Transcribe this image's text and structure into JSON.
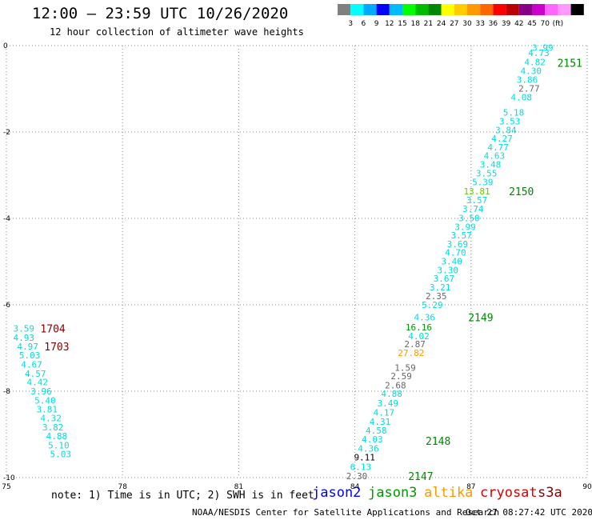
{
  "header": {
    "title": "12:00 – 23:59 UTC 10/26/2020",
    "subtitle": "12 hour collection of altimeter wave heights"
  },
  "legend_scale": {
    "colors": [
      "#808080",
      "#00ffff",
      "#00aaff",
      "#0000ff",
      "#00bbff",
      "#00ff00",
      "#00bb00",
      "#008800",
      "#ffff00",
      "#ffcc00",
      "#ff9900",
      "#ff6600",
      "#ff0000",
      "#bb0000",
      "#880088",
      "#cc00cc",
      "#ff66ff",
      "#ff99ff",
      "#000000"
    ],
    "labels": [
      "3",
      "6",
      "9",
      "12",
      "15",
      "18",
      "21",
      "24",
      "27",
      "30",
      "33",
      "36",
      "39",
      "42",
      "45",
      "70",
      "(ft)"
    ]
  },
  "footer": {
    "note": "note: 1) Time is in UTC; 2) SWH is in feet",
    "missions": [
      {
        "name": "jason2",
        "color": "#0000ff"
      },
      {
        "name": "jason3",
        "color": "#009900"
      },
      {
        "name": "altika",
        "color": "#ff9900"
      },
      {
        "name": "cryosat",
        "color": "#dd0000"
      },
      {
        "name": "s3a",
        "color": "#880000"
      }
    ],
    "credit": "NOAA/NESDIS Center for Satellite Applications and Research",
    "timestamp": "Oct 27 08:27:42 UTC 2020"
  },
  "chart_data": {
    "type": "scatter",
    "title": "12:00 – 23:59 UTC 10/26/2020",
    "xlim": [
      75,
      90
    ],
    "ylim": [
      -10,
      0
    ],
    "x_ticks": [
      "75",
      "78",
      "81",
      "84",
      "87",
      "90"
    ],
    "y_ticks": [
      "0",
      "-2",
      "-4",
      "-6",
      "-8",
      "-10"
    ],
    "grid": true,
    "colors": {
      "cyan": "#00dddd",
      "gray": "#666666",
      "black": "#000000",
      "lime": "#66cc00",
      "green": "#009900",
      "orange": "#ff9900",
      "track_green": "#008800",
      "track_red": "#880000"
    },
    "points": [
      {
        "x": 88.85,
        "y": -0.05,
        "v": "3.99",
        "c": "cyan"
      },
      {
        "x": 88.75,
        "y": -0.17,
        "v": "4.73",
        "c": "cyan"
      },
      {
        "x": 88.65,
        "y": -0.38,
        "v": "4.82",
        "c": "cyan"
      },
      {
        "x": 88.55,
        "y": -0.58,
        "v": "4.30",
        "c": "cyan"
      },
      {
        "x": 88.45,
        "y": -0.79,
        "v": "3.86",
        "c": "cyan"
      },
      {
        "x": 88.5,
        "y": -0.99,
        "v": "2.77",
        "c": "gray"
      },
      {
        "x": 88.3,
        "y": -1.19,
        "v": "4.08",
        "c": "cyan"
      },
      {
        "x": 88.1,
        "y": -1.55,
        "v": "5.18",
        "c": "cyan"
      },
      {
        "x": 88.0,
        "y": -1.75,
        "v": "3.53",
        "c": "cyan"
      },
      {
        "x": 87.9,
        "y": -1.95,
        "v": "3.84",
        "c": "cyan"
      },
      {
        "x": 87.8,
        "y": -2.15,
        "v": "4.27",
        "c": "cyan"
      },
      {
        "x": 87.7,
        "y": -2.35,
        "v": "4.77",
        "c": "cyan"
      },
      {
        "x": 87.6,
        "y": -2.55,
        "v": "4.63",
        "c": "cyan"
      },
      {
        "x": 87.5,
        "y": -2.75,
        "v": "3.48",
        "c": "cyan"
      },
      {
        "x": 87.4,
        "y": -2.95,
        "v": "3.55",
        "c": "cyan"
      },
      {
        "x": 87.3,
        "y": -3.16,
        "v": "5.39",
        "c": "cyan"
      },
      {
        "x": 87.15,
        "y": -3.37,
        "v": "13.81",
        "c": "lime"
      },
      {
        "x": 87.15,
        "y": -3.57,
        "v": "3.57",
        "c": "cyan"
      },
      {
        "x": 87.05,
        "y": -3.78,
        "v": "3.74",
        "c": "cyan"
      },
      {
        "x": 86.95,
        "y": -3.99,
        "v": "3.50",
        "c": "cyan"
      },
      {
        "x": 86.85,
        "y": -4.19,
        "v": "3.99",
        "c": "cyan"
      },
      {
        "x": 86.75,
        "y": -4.39,
        "v": "3.57",
        "c": "cyan"
      },
      {
        "x": 86.65,
        "y": -4.59,
        "v": "3.69",
        "c": "cyan"
      },
      {
        "x": 86.6,
        "y": -4.79,
        "v": "4.70",
        "c": "cyan"
      },
      {
        "x": 86.5,
        "y": -4.99,
        "v": "3.40",
        "c": "cyan"
      },
      {
        "x": 86.4,
        "y": -5.19,
        "v": "3.30",
        "c": "cyan"
      },
      {
        "x": 86.3,
        "y": -5.39,
        "v": "3.67",
        "c": "cyan"
      },
      {
        "x": 86.2,
        "y": -5.59,
        "v": "3.21",
        "c": "cyan"
      },
      {
        "x": 86.1,
        "y": -5.8,
        "v": "2.35",
        "c": "gray"
      },
      {
        "x": 86.0,
        "y": -6.0,
        "v": "5.29",
        "c": "cyan"
      },
      {
        "x": 85.8,
        "y": -6.29,
        "v": "4.36",
        "c": "cyan"
      },
      {
        "x": 85.65,
        "y": -6.52,
        "v": "16.16",
        "c": "green"
      },
      {
        "x": 85.65,
        "y": -6.72,
        "v": "4.02",
        "c": "cyan"
      },
      {
        "x": 85.55,
        "y": -6.91,
        "v": "2.87",
        "c": "gray"
      },
      {
        "x": 85.45,
        "y": -7.11,
        "v": "27.82",
        "c": "orange"
      },
      {
        "x": 85.3,
        "y": -7.45,
        "v": "1.59",
        "c": "gray"
      },
      {
        "x": 85.2,
        "y": -7.65,
        "v": "2.59",
        "c": "gray"
      },
      {
        "x": 85.05,
        "y": -7.86,
        "v": "2.68",
        "c": "gray"
      },
      {
        "x": 84.95,
        "y": -8.06,
        "v": "4.88",
        "c": "cyan"
      },
      {
        "x": 84.85,
        "y": -8.28,
        "v": "3.49",
        "c": "cyan"
      },
      {
        "x": 84.75,
        "y": -8.49,
        "v": "4.17",
        "c": "cyan"
      },
      {
        "x": 84.65,
        "y": -8.7,
        "v": "4.31",
        "c": "cyan"
      },
      {
        "x": 84.55,
        "y": -8.91,
        "v": "4.58",
        "c": "cyan"
      },
      {
        "x": 84.45,
        "y": -9.11,
        "v": "4.03",
        "c": "cyan"
      },
      {
        "x": 84.35,
        "y": -9.32,
        "v": "4.36",
        "c": "cyan"
      },
      {
        "x": 84.25,
        "y": -9.53,
        "v": "9.11",
        "c": "black"
      },
      {
        "x": 84.15,
        "y": -9.75,
        "v": "6.13",
        "c": "cyan"
      },
      {
        "x": 84.05,
        "y": -9.96,
        "v": "2.30",
        "c": "gray"
      },
      {
        "x": 75.45,
        "y": -6.55,
        "v": "3.59",
        "c": "cyan"
      },
      {
        "x": 75.45,
        "y": -6.76,
        "v": "4.93",
        "c": "cyan"
      },
      {
        "x": 75.55,
        "y": -6.96,
        "v": "4.97",
        "c": "cyan"
      },
      {
        "x": 75.6,
        "y": -7.17,
        "v": "5.03",
        "c": "cyan"
      },
      {
        "x": 75.65,
        "y": -7.38,
        "v": "4.67",
        "c": "cyan"
      },
      {
        "x": 75.75,
        "y": -7.59,
        "v": "4.57",
        "c": "cyan"
      },
      {
        "x": 75.8,
        "y": -7.79,
        "v": "4.42",
        "c": "cyan"
      },
      {
        "x": 75.9,
        "y": -8.0,
        "v": "3.96",
        "c": "cyan"
      },
      {
        "x": 76.0,
        "y": -8.21,
        "v": "5.40",
        "c": "cyan"
      },
      {
        "x": 76.05,
        "y": -8.42,
        "v": "3.81",
        "c": "cyan"
      },
      {
        "x": 76.15,
        "y": -8.62,
        "v": "4.32",
        "c": "cyan"
      },
      {
        "x": 76.2,
        "y": -8.83,
        "v": "3.82",
        "c": "cyan"
      },
      {
        "x": 76.3,
        "y": -9.04,
        "v": "4.88",
        "c": "cyan"
      },
      {
        "x": 76.35,
        "y": -9.25,
        "v": "5.10",
        "c": "cyan"
      },
      {
        "x": 76.4,
        "y": -9.45,
        "v": "5.03",
        "c": "cyan"
      }
    ],
    "track_labels": [
      {
        "x": 89.55,
        "y": -0.4,
        "v": "2151",
        "c": "track_green"
      },
      {
        "x": 88.3,
        "y": -3.37,
        "v": "2150",
        "c": "track_green"
      },
      {
        "x": 87.25,
        "y": -6.29,
        "v": "2149",
        "c": "track_green"
      },
      {
        "x": 86.15,
        "y": -9.15,
        "v": "2148",
        "c": "track_green"
      },
      {
        "x": 85.7,
        "y": -9.96,
        "v": "2147",
        "c": "track_green"
      },
      {
        "x": 76.2,
        "y": -6.55,
        "v": "1704",
        "c": "track_red"
      },
      {
        "x": 76.3,
        "y": -6.96,
        "v": "1703",
        "c": "track_red"
      }
    ]
  }
}
